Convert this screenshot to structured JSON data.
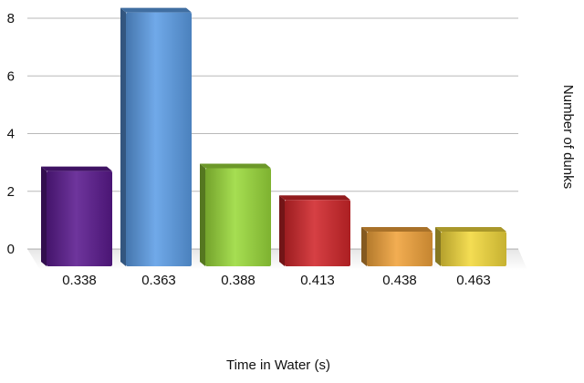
{
  "chart_data": {
    "type": "bar",
    "categories": [
      "0.338",
      "0.363",
      "0.388",
      "0.413",
      "0.438",
      "0.463"
    ],
    "values": [
      2.7,
      8.2,
      2.8,
      1.7,
      0.6,
      0.6
    ],
    "title": "",
    "xlabel": "Time in Water (s)",
    "ylabel": "Number of dunks",
    "ylim": [
      0,
      8
    ],
    "yticks": [
      0,
      2,
      4,
      6,
      8
    ],
    "grid": true,
    "bar_colors": [
      "#5a1a8e",
      "#5c9de6",
      "#9ad93a",
      "#d0262a",
      "#f0a23a",
      "#f2d83c"
    ]
  }
}
